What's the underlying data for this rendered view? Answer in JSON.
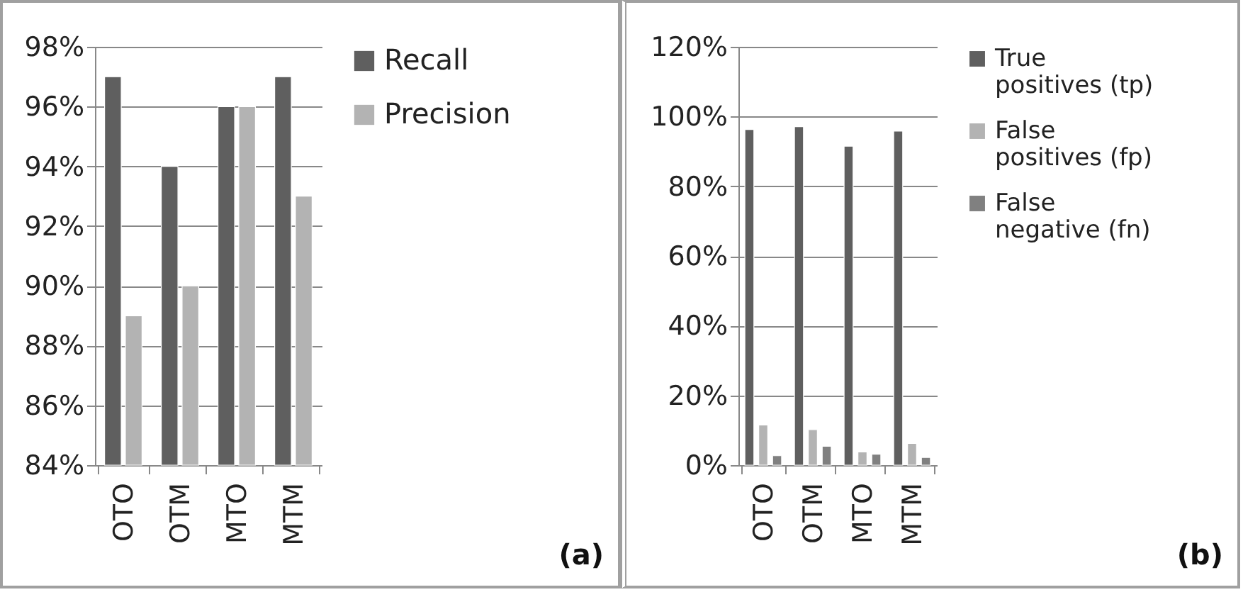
{
  "chart_data": [
    {
      "type": "bar",
      "categories": [
        "OTO",
        "OTM",
        "MTO",
        "MTM"
      ],
      "series": [
        {
          "name": "Recall",
          "color": "#5f5f5f",
          "values": [
            97,
            94,
            96,
            97
          ]
        },
        {
          "name": "Precision",
          "color": "#b3b3b3",
          "values": [
            89,
            90,
            96,
            93
          ]
        }
      ],
      "ylim": [
        84,
        98
      ],
      "yticks": [
        {
          "value": 84,
          "label": "84%"
        },
        {
          "value": 86,
          "label": "86%"
        },
        {
          "value": 88,
          "label": "88%"
        },
        {
          "value": 90,
          "label": "90%"
        },
        {
          "value": 92,
          "label": "92%"
        },
        {
          "value": 94,
          "label": "94%"
        },
        {
          "value": 96,
          "label": "96%"
        },
        {
          "value": 98,
          "label": "98%"
        }
      ],
      "grid": "y",
      "legend": "right",
      "annotations": [
        "(a)"
      ]
    },
    {
      "type": "bar",
      "categories": [
        "OTO",
        "OTM",
        "MTO",
        "MTM"
      ],
      "series": [
        {
          "name": "True positives (tp)",
          "color": "#5f5f5f",
          "values": [
            96.3,
            97.1,
            91.5,
            95.8
          ]
        },
        {
          "name": "False positives (fp)",
          "color": "#b3b3b3",
          "values": [
            11.5,
            10.2,
            3.8,
            6.2
          ]
        },
        {
          "name": "False negative (fn)",
          "color": "#808080",
          "values": [
            2.7,
            5.4,
            3.1,
            2.2
          ]
        }
      ],
      "ylim": [
        0,
        120
      ],
      "yticks": [
        {
          "value": 0,
          "label": "0%"
        },
        {
          "value": 20,
          "label": "20%"
        },
        {
          "value": 40,
          "label": "40%"
        },
        {
          "value": 60,
          "label": "60%"
        },
        {
          "value": 80,
          "label": "80%"
        },
        {
          "value": 100,
          "label": "100%"
        },
        {
          "value": 120,
          "label": "120%"
        }
      ],
      "grid": "y",
      "legend": "right",
      "annotations": [
        "(b)"
      ]
    }
  ]
}
